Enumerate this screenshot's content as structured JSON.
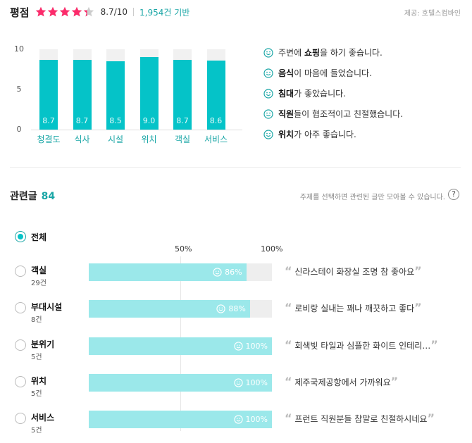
{
  "header": {
    "title": "평점",
    "rating": 4.35,
    "score_text": "8.7/10",
    "review_count": "1,954건 기반",
    "provider": "제공: 호텔스컴바인"
  },
  "colors": {
    "accent": "#05c3c8",
    "star": "#fc2b6b",
    "star_empty": "#cccccc"
  },
  "chart_data": {
    "type": "bar",
    "categories": [
      "청결도",
      "식사",
      "시설",
      "위치",
      "객실",
      "서비스"
    ],
    "values": [
      8.7,
      8.7,
      8.5,
      9.0,
      8.7,
      8.6
    ],
    "value_labels": [
      "8.7",
      "8.7",
      "8.5",
      "9.0",
      "8.7",
      "8.6"
    ],
    "yticks": [
      "10",
      "5",
      "0"
    ],
    "ylim": [
      0,
      10
    ]
  },
  "highlights": [
    {
      "bold": "",
      "pre": "주변에 ",
      "strong": "쇼핑",
      "post": "을 하기 좋습니다."
    },
    {
      "pre": "",
      "strong": "음식",
      "post": "이 마음에 들었습니다."
    },
    {
      "pre": "",
      "strong": "침대",
      "post": "가 좋았습니다."
    },
    {
      "pre": "",
      "strong": "직원",
      "post": "들이 협조적이고 친절했습니다."
    },
    {
      "pre": "",
      "strong": "위치",
      "post": "가 아주 좋습니다."
    }
  ],
  "related": {
    "title": "관련글",
    "count": "84",
    "hint": "주제를 선택하면 관련된 글만 모아볼 수 있습니다.",
    "help": "?",
    "all_label": "전체",
    "scale_50": "50%",
    "scale_100": "100%",
    "topics": [
      {
        "name": "객실",
        "count": "29건",
        "percent": 86,
        "percent_text": "86%",
        "quote": "신라스테이 화장실 조명 참 좋아요"
      },
      {
        "name": "부대시설",
        "count": "8건",
        "percent": 88,
        "percent_text": "88%",
        "quote": "로비랑 실내는 꽤나 깨끗하고 좋다"
      },
      {
        "name": "분위기",
        "count": "5건",
        "percent": 100,
        "percent_text": "100%",
        "quote": "회색빛 타일과 심플한 화이트 인테리…"
      },
      {
        "name": "위치",
        "count": "5건",
        "percent": 100,
        "percent_text": "100%",
        "quote": "제주국제공항에서 가까워요"
      },
      {
        "name": "서비스",
        "count": "5건",
        "percent": 100,
        "percent_text": "100%",
        "quote": "프런트 직원분들 참말로 친절하시네요"
      }
    ]
  }
}
